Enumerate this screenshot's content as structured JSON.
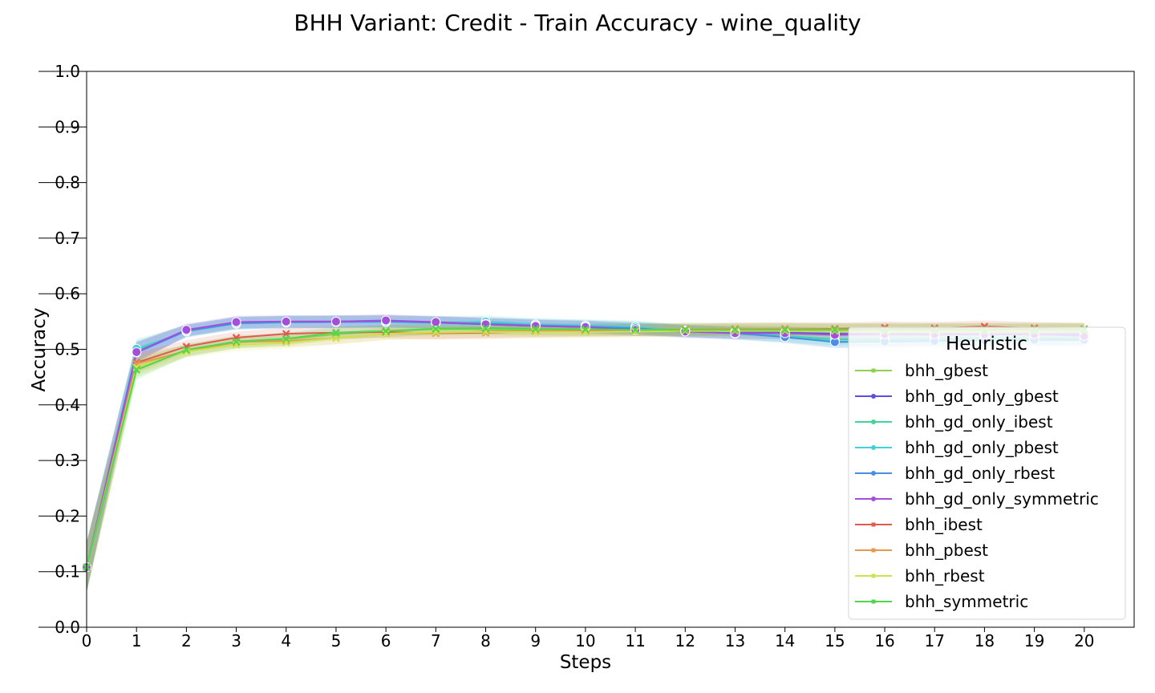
{
  "chart_data": {
    "type": "line",
    "title": "BHH Variant: Credit - Train Accuracy - wine_quality",
    "xlabel": "Steps",
    "ylabel": "Accuracy",
    "xlim": [
      0,
      21
    ],
    "ylim": [
      0,
      1
    ],
    "x": [
      0,
      1,
      2,
      3,
      4,
      5,
      6,
      7,
      8,
      9,
      10,
      11,
      12,
      13,
      14,
      15,
      16,
      17,
      18,
      19,
      20
    ],
    "x_ticks": [
      "0",
      "1",
      "2",
      "3",
      "4",
      "5",
      "6",
      "7",
      "8",
      "9",
      "10",
      "11",
      "12",
      "13",
      "14",
      "15",
      "16",
      "17",
      "18",
      "19",
      "20"
    ],
    "y_ticks": [
      "0.0",
      "0.1",
      "0.2",
      "0.3",
      "0.4",
      "0.5",
      "0.6",
      "0.7",
      "0.8",
      "0.9",
      "1.0"
    ],
    "grid": false,
    "legend": {
      "title": "Heuristic",
      "placement": "lower-right"
    },
    "series": [
      {
        "name": "bhh_gbest",
        "color": "#8fd14f",
        "marker": "x",
        "values": [
          0.108,
          0.468,
          0.498,
          0.512,
          0.518,
          0.527,
          0.533,
          0.536,
          0.536,
          0.535,
          0.535,
          0.536,
          0.537,
          0.537,
          0.537,
          0.536,
          0.536,
          0.536,
          0.537,
          0.537,
          0.537
        ]
      },
      {
        "name": "bhh_gd_only_gbest",
        "color": "#5c4ee0",
        "marker": "o",
        "values": [
          0.108,
          0.495,
          0.534,
          0.548,
          0.55,
          0.55,
          0.551,
          0.548,
          0.545,
          0.542,
          0.54,
          0.537,
          0.533,
          0.532,
          0.53,
          0.528,
          0.527,
          0.527,
          0.527,
          0.527,
          0.527
        ]
      },
      {
        "name": "bhh_gd_only_ibest",
        "color": "#40d69a",
        "marker": "o",
        "values": [
          0.108,
          0.498,
          0.533,
          0.547,
          0.549,
          0.55,
          0.55,
          0.549,
          0.547,
          0.544,
          0.542,
          0.539,
          0.534,
          0.53,
          0.524,
          0.518,
          0.518,
          0.519,
          0.52,
          0.52,
          0.52
        ]
      },
      {
        "name": "bhh_gd_only_pbest",
        "color": "#45d0d5",
        "marker": "o",
        "values": [
          0.108,
          0.501,
          0.532,
          0.546,
          0.548,
          0.549,
          0.549,
          0.548,
          0.55,
          0.545,
          0.543,
          0.541,
          0.533,
          0.528,
          0.524,
          0.514,
          0.515,
          0.516,
          0.517,
          0.517,
          0.518
        ]
      },
      {
        "name": "bhh_gd_only_rbest",
        "color": "#4a8ee3",
        "marker": "o",
        "values": [
          0.108,
          0.494,
          0.533,
          0.547,
          0.549,
          0.549,
          0.55,
          0.548,
          0.546,
          0.543,
          0.541,
          0.538,
          0.532,
          0.529,
          0.522,
          0.513,
          0.514,
          0.515,
          0.516,
          0.517,
          0.517
        ]
      },
      {
        "name": "bhh_gd_only_symmetric",
        "color": "#a34fdc",
        "marker": "o",
        "values": [
          0.108,
          0.495,
          0.535,
          0.549,
          0.55,
          0.55,
          0.552,
          0.549,
          0.545,
          0.542,
          0.54,
          0.535,
          0.532,
          0.529,
          0.529,
          0.526,
          0.527,
          0.527,
          0.527,
          0.527,
          0.524
        ]
      },
      {
        "name": "bhh_ibest",
        "color": "#e05b4e",
        "marker": "x",
        "values": [
          0.108,
          0.476,
          0.505,
          0.521,
          0.528,
          0.53,
          0.531,
          0.529,
          0.53,
          0.532,
          0.533,
          0.534,
          0.535,
          0.536,
          0.537,
          0.537,
          0.539,
          0.538,
          0.541,
          0.538,
          0.536
        ]
      },
      {
        "name": "bhh_pbest",
        "color": "#e39a4d",
        "marker": "x",
        "values": [
          0.108,
          0.474,
          0.497,
          0.513,
          0.515,
          0.52,
          0.528,
          0.529,
          0.532,
          0.533,
          0.534,
          0.535,
          0.536,
          0.537,
          0.537,
          0.536,
          0.536,
          0.536,
          0.536,
          0.536,
          0.536
        ]
      },
      {
        "name": "bhh_rbest",
        "color": "#cfe24e",
        "marker": "x",
        "values": [
          0.108,
          0.468,
          0.496,
          0.508,
          0.512,
          0.52,
          0.528,
          0.531,
          0.531,
          0.531,
          0.531,
          0.532,
          0.533,
          0.533,
          0.533,
          0.533,
          0.533,
          0.533,
          0.533,
          0.533,
          0.533
        ]
      },
      {
        "name": "bhh_symmetric",
        "color": "#4fd84f",
        "marker": "x",
        "values": [
          0.108,
          0.463,
          0.499,
          0.514,
          0.519,
          0.53,
          0.533,
          0.537,
          0.538,
          0.537,
          0.536,
          0.535,
          0.535,
          0.535,
          0.535,
          0.535,
          0.535,
          0.535,
          0.535,
          0.535,
          0.535
        ]
      }
    ]
  }
}
